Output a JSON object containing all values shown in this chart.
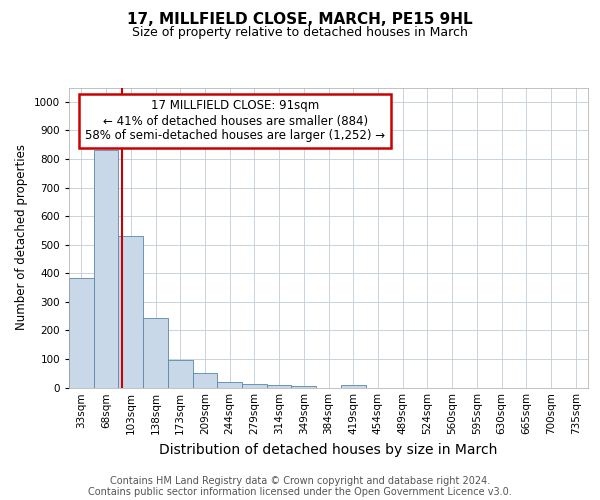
{
  "title": "17, MILLFIELD CLOSE, MARCH, PE15 9HL",
  "subtitle": "Size of property relative to detached houses in March",
  "xlabel": "Distribution of detached houses by size in March",
  "ylabel": "Number of detached properties",
  "bar_color": "#c8d8e8",
  "bar_edge_color": "#5588aa",
  "categories": [
    "33sqm",
    "68sqm",
    "103sqm",
    "138sqm",
    "173sqm",
    "209sqm",
    "244sqm",
    "279sqm",
    "314sqm",
    "349sqm",
    "384sqm",
    "419sqm",
    "454sqm",
    "489sqm",
    "524sqm",
    "560sqm",
    "595sqm",
    "630sqm",
    "665sqm",
    "700sqm",
    "735sqm"
  ],
  "values": [
    385,
    830,
    530,
    242,
    96,
    50,
    20,
    12,
    10,
    7,
    0,
    8,
    0,
    0,
    0,
    0,
    0,
    0,
    0,
    0,
    0
  ],
  "ylim": [
    0,
    1050
  ],
  "yticks": [
    0,
    100,
    200,
    300,
    400,
    500,
    600,
    700,
    800,
    900,
    1000
  ],
  "property_line_x": 1.64,
  "annotation_text": "17 MILLFIELD CLOSE: 91sqm\n← 41% of detached houses are smaller (884)\n58% of semi-detached houses are larger (1,252) →",
  "annotation_box_color": "#ffffff",
  "annotation_box_edge": "#cc0000",
  "property_line_color": "#cc0000",
  "footer_line1": "Contains HM Land Registry data © Crown copyright and database right 2024.",
  "footer_line2": "Contains public sector information licensed under the Open Government Licence v3.0.",
  "background_color": "#ffffff",
  "grid_color": "#c0ccd8",
  "title_fontsize": 11,
  "subtitle_fontsize": 9,
  "xlabel_fontsize": 10,
  "ylabel_fontsize": 8.5,
  "tick_fontsize": 7.5,
  "footer_fontsize": 7
}
